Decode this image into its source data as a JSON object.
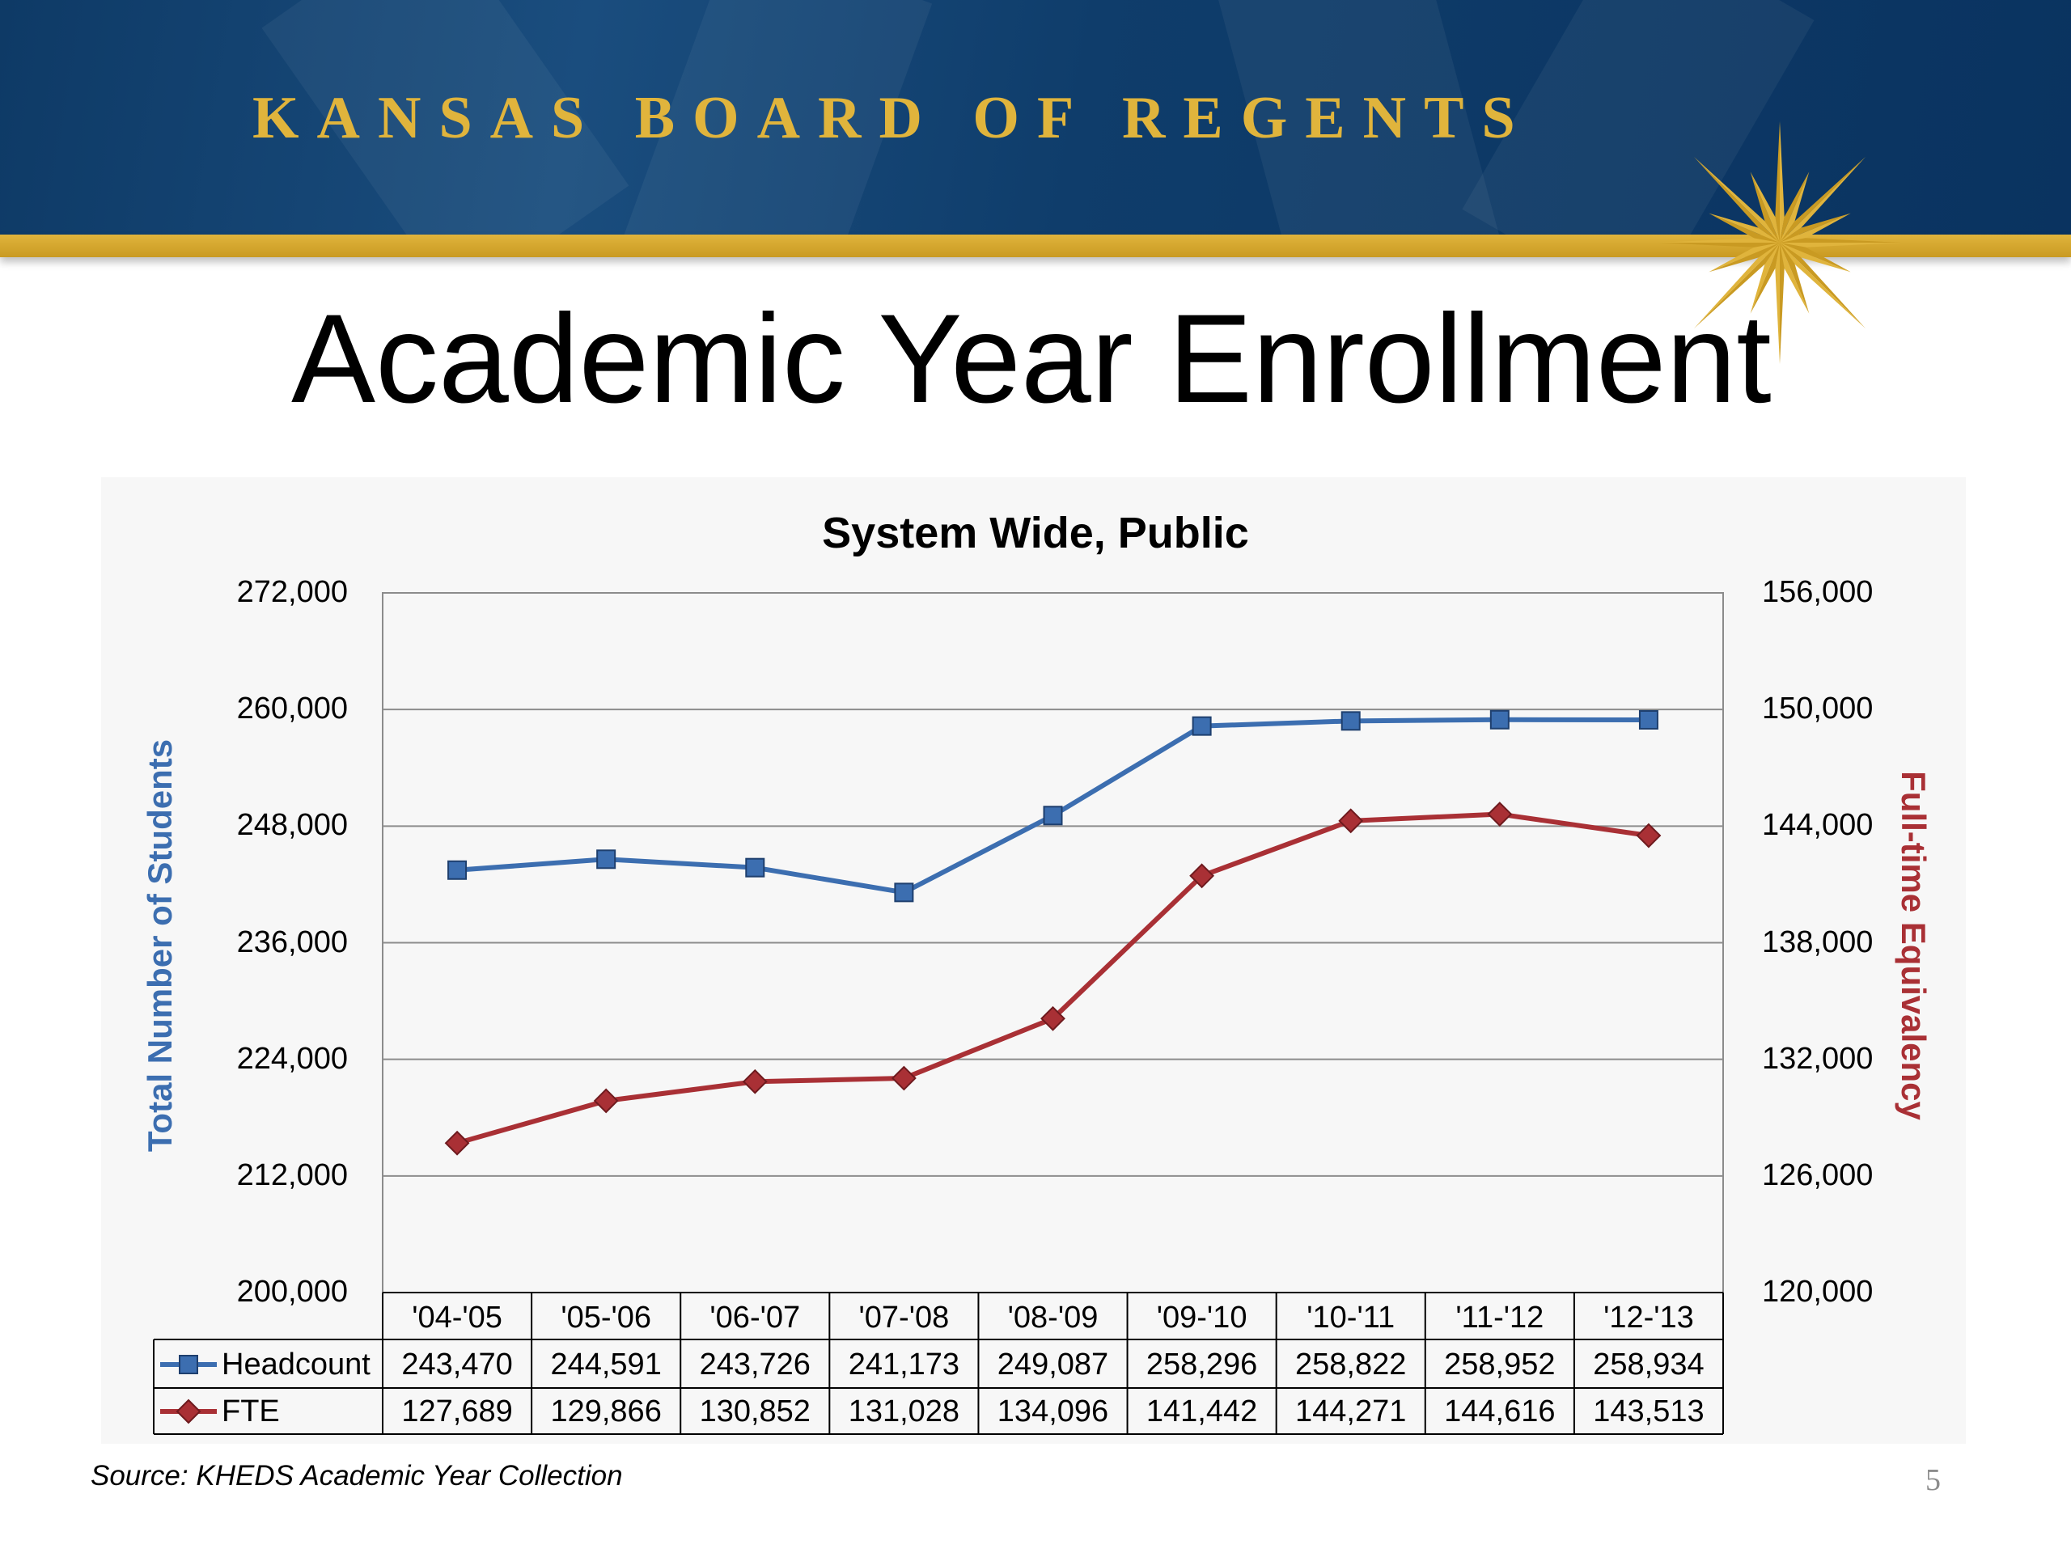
{
  "header": {
    "brand": "KANSAS BOARD OF REGENTS"
  },
  "slide": {
    "title": "Academic Year Enrollment",
    "source": "Source: KHEDS Academic Year Collection",
    "page_number": "5"
  },
  "colors": {
    "headcount": "#3c6eb0",
    "fte": "#a93035",
    "gold": "#e0b43c",
    "navy": "#0f3d6b"
  },
  "chart_data": {
    "type": "line",
    "title": "System Wide, Public",
    "categories": [
      "'04-'05",
      "'05-'06",
      "'06-'07",
      "'07-'08",
      "'08-'09",
      "'09-'10",
      "'10-'11",
      "'11-'12",
      "'12-'13"
    ],
    "series": [
      {
        "name": "Headcount",
        "axis": "left",
        "marker": "square",
        "color": "#3c6eb0",
        "values": [
          243470,
          244591,
          243726,
          241173,
          249087,
          258296,
          258822,
          258952,
          258934
        ],
        "labels": [
          "243,470",
          "244,591",
          "243,726",
          "241,173",
          "249,087",
          "258,296",
          "258,822",
          "258,952",
          "258,934"
        ]
      },
      {
        "name": "FTE",
        "axis": "right",
        "marker": "diamond",
        "color": "#a93035",
        "values": [
          127689,
          129866,
          130852,
          131028,
          134096,
          141442,
          144271,
          144616,
          143513
        ],
        "labels": [
          "127,689",
          "129,866",
          "130,852",
          "131,028",
          "134,096",
          "141,442",
          "144,271",
          "144,616",
          "143,513"
        ]
      }
    ],
    "y_left": {
      "label": "Total  Number of Students",
      "min": 200000,
      "max": 272000,
      "ticks": [
        "200,000",
        "212,000",
        "224,000",
        "236,000",
        "248,000",
        "260,000",
        "272,000"
      ]
    },
    "y_right": {
      "label": "Full-time Equivalency",
      "min": 120000,
      "max": 156000,
      "ticks": [
        "120,000",
        "126,000",
        "132,000",
        "138,000",
        "144,000",
        "150,000",
        "156,000"
      ]
    },
    "grid": true,
    "legend": "data-table"
  }
}
